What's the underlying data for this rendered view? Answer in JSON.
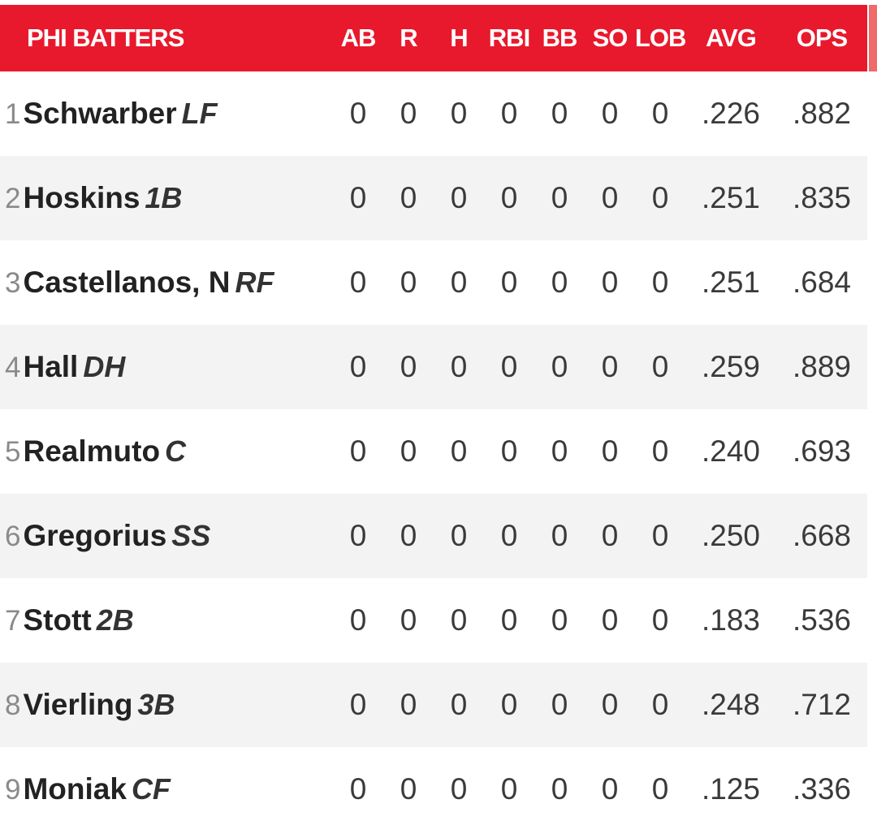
{
  "colors": {
    "header_bg": "#e8192c",
    "header_text": "#ffffff",
    "row_alt_bg": "#f3f3f3"
  },
  "header": {
    "team_label": "PHI BATTERS",
    "columns": [
      "AB",
      "R",
      "H",
      "RBI",
      "BB",
      "SO",
      "LOB",
      "AVG",
      "OPS"
    ]
  },
  "rows": [
    {
      "order": "1",
      "name": "Schwarber",
      "pos": "LF",
      "ab": "0",
      "r": "0",
      "h": "0",
      "rbi": "0",
      "bb": "0",
      "so": "0",
      "lob": "0",
      "avg": ".226",
      "ops": ".882"
    },
    {
      "order": "2",
      "name": "Hoskins",
      "pos": "1B",
      "ab": "0",
      "r": "0",
      "h": "0",
      "rbi": "0",
      "bb": "0",
      "so": "0",
      "lob": "0",
      "avg": ".251",
      "ops": ".835"
    },
    {
      "order": "3",
      "name": "Castellanos, N",
      "pos": "RF",
      "ab": "0",
      "r": "0",
      "h": "0",
      "rbi": "0",
      "bb": "0",
      "so": "0",
      "lob": "0",
      "avg": ".251",
      "ops": ".684"
    },
    {
      "order": "4",
      "name": "Hall",
      "pos": "DH",
      "ab": "0",
      "r": "0",
      "h": "0",
      "rbi": "0",
      "bb": "0",
      "so": "0",
      "lob": "0",
      "avg": ".259",
      "ops": ".889"
    },
    {
      "order": "5",
      "name": "Realmuto",
      "pos": "C",
      "ab": "0",
      "r": "0",
      "h": "0",
      "rbi": "0",
      "bb": "0",
      "so": "0",
      "lob": "0",
      "avg": ".240",
      "ops": ".693"
    },
    {
      "order": "6",
      "name": "Gregorius",
      "pos": "SS",
      "ab": "0",
      "r": "0",
      "h": "0",
      "rbi": "0",
      "bb": "0",
      "so": "0",
      "lob": "0",
      "avg": ".250",
      "ops": ".668"
    },
    {
      "order": "7",
      "name": "Stott",
      "pos": "2B",
      "ab": "0",
      "r": "0",
      "h": "0",
      "rbi": "0",
      "bb": "0",
      "so": "0",
      "lob": "0",
      "avg": ".183",
      "ops": ".536"
    },
    {
      "order": "8",
      "name": "Vierling",
      "pos": "3B",
      "ab": "0",
      "r": "0",
      "h": "0",
      "rbi": "0",
      "bb": "0",
      "so": "0",
      "lob": "0",
      "avg": ".248",
      "ops": ".712"
    },
    {
      "order": "9",
      "name": "Moniak",
      "pos": "CF",
      "ab": "0",
      "r": "0",
      "h": "0",
      "rbi": "0",
      "bb": "0",
      "so": "0",
      "lob": "0",
      "avg": ".125",
      "ops": ".336"
    }
  ]
}
